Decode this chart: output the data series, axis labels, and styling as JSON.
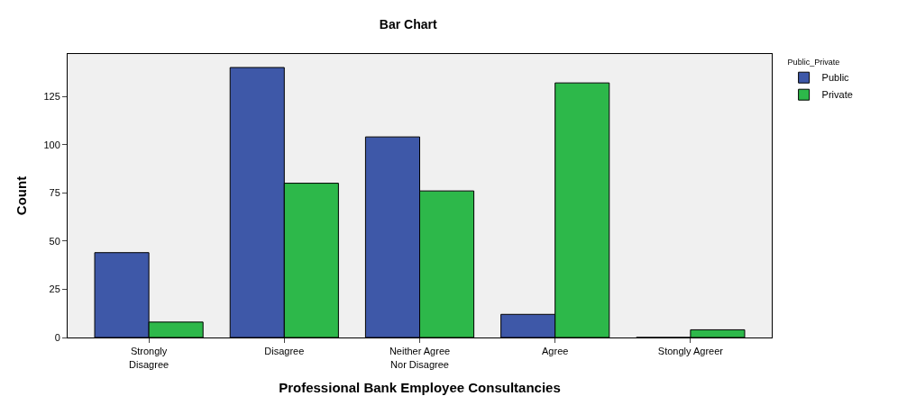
{
  "chart_data": {
    "type": "bar",
    "title": "Bar Chart",
    "xlabel": "Professional Bank Employee Consultancies",
    "ylabel": "Count",
    "legend_title": "Public_Private",
    "categories": [
      "Strongly\nDisagree",
      "Disagree",
      "Neither Agree\nNor Disagree",
      "Agree",
      "Stongly Agreer"
    ],
    "series": [
      {
        "name": "Public",
        "color": "#3e58a8",
        "values": [
          44,
          140,
          104,
          12,
          0
        ]
      },
      {
        "name": "Private",
        "color": "#2db84a",
        "values": [
          8,
          80,
          76,
          132,
          4
        ]
      }
    ],
    "ylim": [
      0,
      147
    ],
    "yticks": [
      0,
      25,
      50,
      75,
      100,
      125
    ],
    "grid": false,
    "legend": "top right"
  }
}
